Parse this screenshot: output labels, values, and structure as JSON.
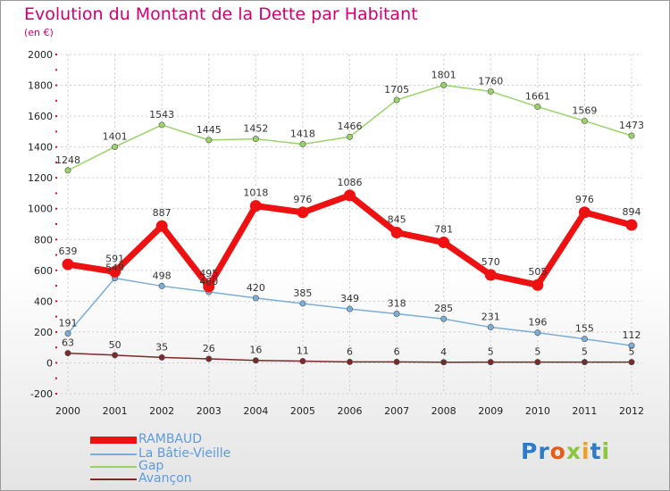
{
  "title": "Evolution du Montant de la Dette par Habitant",
  "subtitle": "(en €)",
  "brand": "Proxiti",
  "brand_colors": [
    "#2e7cc9",
    "#2e7cc9",
    "#e85b14",
    "#8cc63f",
    "#f0a020",
    "#2e7cc9",
    "#8cc63f"
  ],
  "chart_data": {
    "type": "line",
    "categories": [
      "2000",
      "2001",
      "2002",
      "2003",
      "2004",
      "2005",
      "2006",
      "2007",
      "2008",
      "2009",
      "2010",
      "2011",
      "2012"
    ],
    "ylim": [
      -200,
      2000
    ],
    "yticks": [
      -200,
      0,
      200,
      400,
      600,
      800,
      1000,
      1200,
      1400,
      1600,
      1800,
      2000
    ],
    "grid": true,
    "legend_position": "bottom-left",
    "series": [
      {
        "name": "RAMBAUD",
        "color": "#ee1111",
        "values": [
          639,
          591,
          887,
          495,
          1018,
          976,
          1086,
          845,
          781,
          570,
          505,
          976,
          894
        ]
      },
      {
        "name": "La Bâtie-Vieille",
        "color": "#7aaed8",
        "values": [
          191,
          549,
          498,
          460,
          420,
          385,
          349,
          318,
          285,
          231,
          196,
          155,
          112
        ]
      },
      {
        "name": "Gap",
        "color": "#9ad26a",
        "values": [
          1248,
          1401,
          1543,
          1445,
          1452,
          1418,
          1466,
          1705,
          1801,
          1760,
          1661,
          1569,
          1473
        ]
      },
      {
        "name": "Avançon",
        "color": "#7a2a2a",
        "values": [
          63,
          50,
          35,
          26,
          16,
          11,
          6,
          6,
          4,
          5,
          5,
          5,
          5
        ]
      }
    ]
  }
}
